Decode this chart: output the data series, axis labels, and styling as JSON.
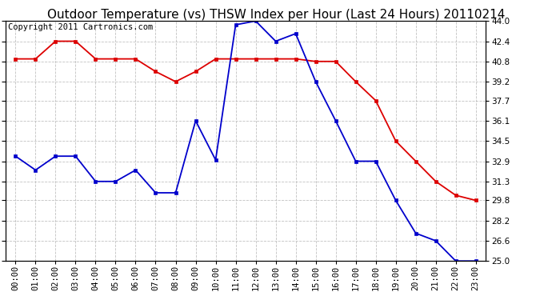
{
  "title": "Outdoor Temperature (vs) THSW Index per Hour (Last 24 Hours) 20110214",
  "copyright": "Copyright 2011 Cartronics.com",
  "x_labels": [
    "00:00",
    "01:00",
    "02:00",
    "03:00",
    "04:00",
    "05:00",
    "06:00",
    "07:00",
    "08:00",
    "09:00",
    "10:00",
    "11:00",
    "12:00",
    "13:00",
    "14:00",
    "15:00",
    "16:00",
    "17:00",
    "18:00",
    "19:00",
    "20:00",
    "21:00",
    "22:00",
    "23:00"
  ],
  "red_data": [
    41.0,
    41.0,
    42.4,
    42.4,
    41.0,
    41.0,
    41.0,
    40.0,
    39.2,
    40.0,
    41.0,
    41.0,
    41.0,
    41.0,
    41.0,
    40.8,
    40.8,
    39.2,
    37.7,
    34.5,
    32.9,
    31.3,
    30.2,
    29.8
  ],
  "blue_data": [
    33.3,
    32.2,
    33.3,
    33.3,
    31.3,
    31.3,
    32.2,
    30.4,
    30.4,
    36.1,
    33.0,
    43.7,
    44.0,
    42.4,
    43.0,
    39.2,
    36.1,
    32.9,
    32.9,
    29.8,
    27.2,
    26.6,
    25.0,
    25.0
  ],
  "red_color": "#dd0000",
  "blue_color": "#0000cc",
  "bg_color": "#ffffff",
  "grid_color": "#bbbbbb",
  "ylim": [
    25.0,
    44.0
  ],
  "yticks": [
    25.0,
    26.6,
    28.2,
    29.8,
    31.3,
    32.9,
    34.5,
    36.1,
    37.7,
    39.2,
    40.8,
    42.4,
    44.0
  ],
  "title_fontsize": 11,
  "copyright_fontsize": 7.5,
  "tick_fontsize": 7.5,
  "marker": "s",
  "markersize": 3.5
}
